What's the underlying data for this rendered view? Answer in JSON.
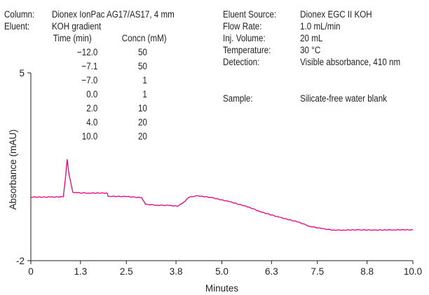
{
  "conditions_left": {
    "rows": [
      {
        "label": "Column:",
        "value": "Dionex IonPac AG17/AS17, 4 mm"
      },
      {
        "label": "Eluent:",
        "value": "KOH gradient"
      }
    ],
    "gradient": {
      "headers": [
        "Time (min)",
        "Concn (mM)"
      ],
      "rows": [
        [
          "−12.0",
          "50"
        ],
        [
          "−7.1",
          "50"
        ],
        [
          "−7.0",
          "1"
        ],
        [
          "0.0",
          "1"
        ],
        [
          "2.0",
          "10"
        ],
        [
          "4.0",
          "20"
        ],
        [
          "10.0",
          "20"
        ]
      ]
    }
  },
  "conditions_right": {
    "rows": [
      {
        "label": "Eluent Source:",
        "value": "Dionex EGC II KOH"
      },
      {
        "label": "Flow Rate:",
        "value": "1.0 mL/min"
      },
      {
        "label": "Inj. Volume:",
        "value": "20 mL"
      },
      {
        "label": "Temperature:",
        "value": "30 °C"
      },
      {
        "label": "Detection:",
        "value": "Visible absorbance, 410 nm"
      }
    ],
    "sample": {
      "label": "Sample:",
      "value": "Silicate-free water blank"
    }
  },
  "chart_data": {
    "type": "line",
    "xlabel": "Minutes",
    "ylabel": "Absorbance (mAU)",
    "xlim": [
      0,
      10
    ],
    "ylim": [
      -2,
      5
    ],
    "xticks": [
      "0",
      "1.3",
      "2.5",
      "3.8",
      "5.0",
      "6.3",
      "7.5",
      "8.8",
      "10.0"
    ],
    "yticks": [
      "5",
      "-2"
    ],
    "grid": false,
    "series": [
      {
        "color": "#e6007e",
        "x": [
          0.0,
          0.5,
          0.85,
          0.9,
          0.95,
          1.0,
          1.1,
          1.2,
          1.5,
          2.0,
          2.02,
          2.5,
          2.9,
          3.0,
          3.3,
          3.6,
          3.85,
          4.0,
          4.15,
          4.35,
          4.7,
          5.2,
          5.7,
          6.0,
          6.5,
          7.0,
          7.3,
          7.6,
          7.9,
          8.2,
          8.6,
          9.0,
          9.5,
          10.0
        ],
        "y": [
          0.37,
          0.37,
          0.38,
          1.0,
          1.77,
          1.2,
          0.55,
          0.53,
          0.52,
          0.52,
          0.4,
          0.39,
          0.35,
          0.1,
          0.07,
          0.06,
          0.03,
          0.18,
          0.37,
          0.42,
          0.36,
          0.2,
          0.0,
          -0.17,
          -0.38,
          -0.56,
          -0.72,
          -0.8,
          -0.86,
          -0.86,
          -0.85,
          -0.86,
          -0.85,
          -0.85
        ]
      }
    ]
  }
}
